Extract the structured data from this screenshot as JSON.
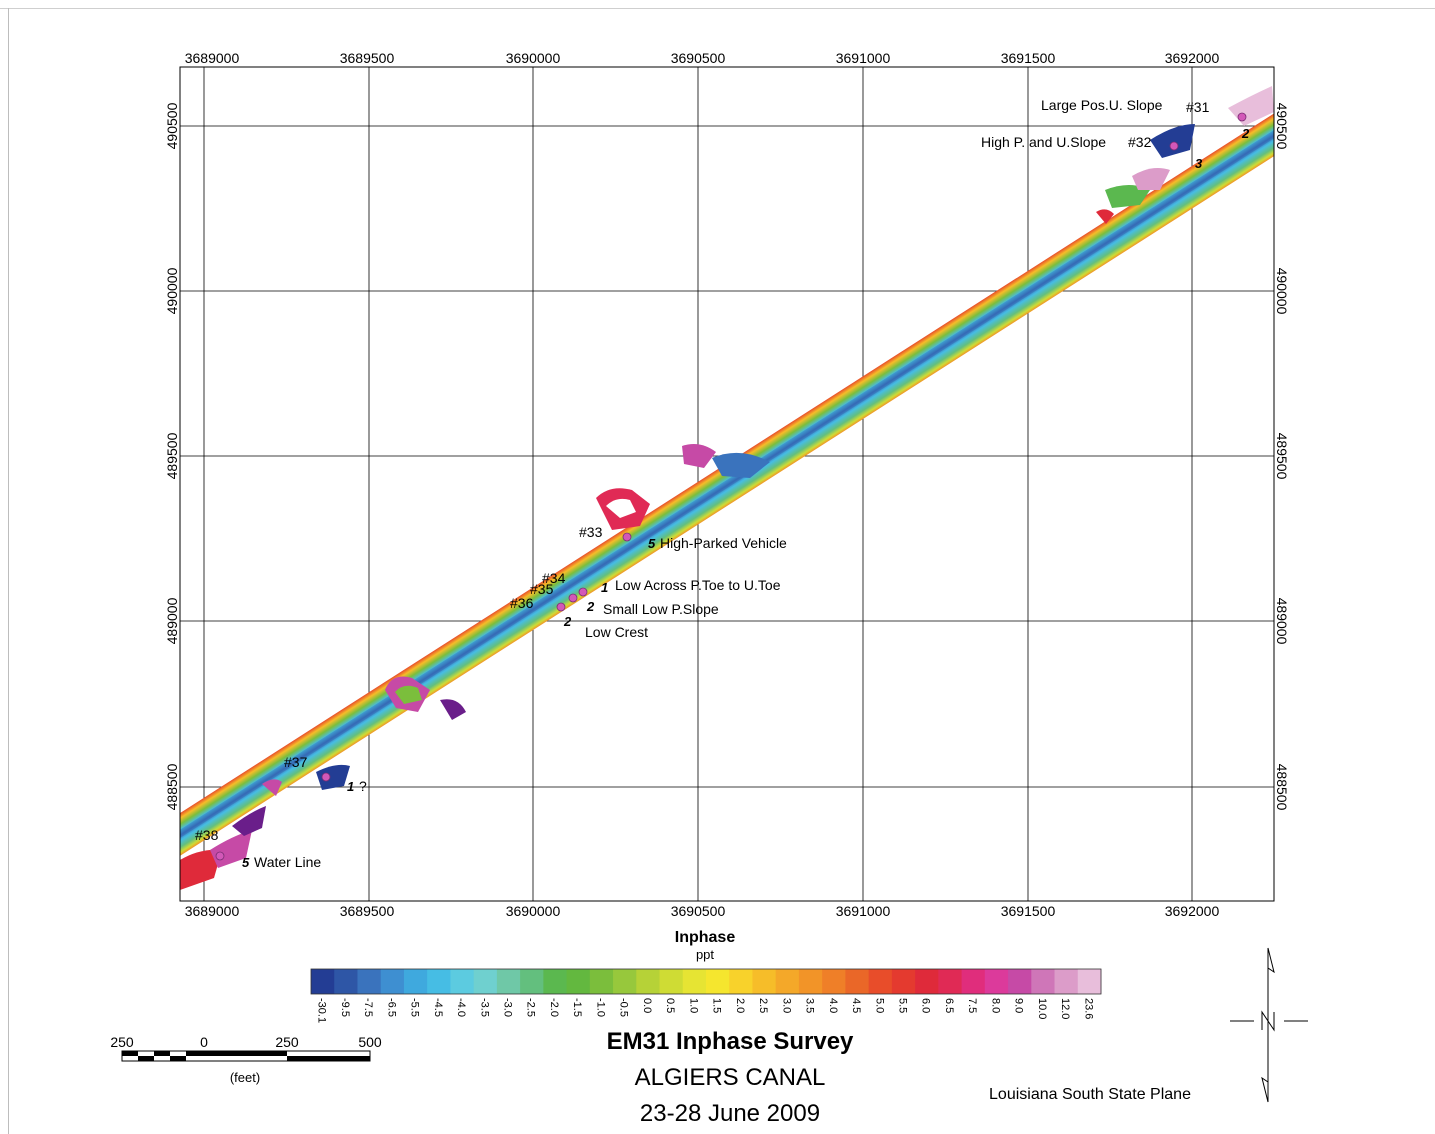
{
  "axes": {
    "x_ticks": [
      "3689000",
      "3689500",
      "3690000",
      "3690500",
      "3691000",
      "3691500",
      "3692000"
    ],
    "y_ticks": [
      "490500",
      "490000",
      "489500",
      "489000",
      "488500"
    ]
  },
  "annotations": {
    "large_pos": "Large Pos.U. Slope",
    "high_p": "High P. and U.Slope",
    "s31": "#31",
    "s32": "#32",
    "n2_top": "2",
    "n3_top": "3",
    "s33": "#33",
    "n5_veh": "5",
    "high_parked": "High-Parked Vehicle",
    "s34": "#34",
    "s35": "#35",
    "s36": "#36",
    "n1_low": "1",
    "low_across": "Low Across P.Toe to U.Toe",
    "n2_small": "2",
    "small_low": "Small Low P.Slope",
    "n2_crest": "2",
    "low_crest": "Low Crest",
    "s37": "#37",
    "n1_q": "1",
    "q_mark": "?",
    "s38": "#38",
    "n5_water": "5",
    "water_line": "Water Line"
  },
  "legend": {
    "title": "Inphase",
    "unit": "ppt",
    "labels": [
      "-30.1",
      "-9.5",
      "-7.5",
      "-6.5",
      "-5.5",
      "-4.5",
      "-4.0",
      "-3.5",
      "-3.0",
      "-2.5",
      "-2.0",
      "-1.5",
      "-1.0",
      "-0.5",
      "0.0",
      "0.5",
      "1.0",
      "1.5",
      "2.0",
      "2.5",
      "3.0",
      "3.5",
      "4.0",
      "4.5",
      "5.0",
      "5.5",
      "6.0",
      "6.5",
      "7.5",
      "8.0",
      "9.0",
      "10.0",
      "12.0",
      "23.6"
    ],
    "colors": [
      "#233d94",
      "#2e56a6",
      "#3a73bd",
      "#3e8fd1",
      "#3fa9de",
      "#46bde4",
      "#5ccbe0",
      "#6fd0cf",
      "#6fc8a7",
      "#63bf7e",
      "#5bb84f",
      "#63b83f",
      "#7bbe3c",
      "#97c83c",
      "#b6d237",
      "#cfdc34",
      "#e6e433",
      "#f5e62e",
      "#f8d22b",
      "#f6bd29",
      "#f4a829",
      "#f29428",
      "#ef7f28",
      "#ea6728",
      "#e84d2a",
      "#e43a2f",
      "#df2a3a",
      "#e02a55",
      "#e02d7c",
      "#dc3a9b",
      "#c64aa6",
      "#cf76b8",
      "#dc9cc9",
      "#e8bedb"
    ]
  },
  "scale_bar": {
    "labels": [
      "250",
      "0",
      "250",
      "500"
    ],
    "unit": "(feet)"
  },
  "title": {
    "main": "EM31 Inphase Survey",
    "sub": "ALGIERS CANAL",
    "date": "23-28 June 2009"
  },
  "projection": "Louisiana South State Plane",
  "colors": {
    "marker": "#d258b8",
    "grid": "#000000"
  }
}
